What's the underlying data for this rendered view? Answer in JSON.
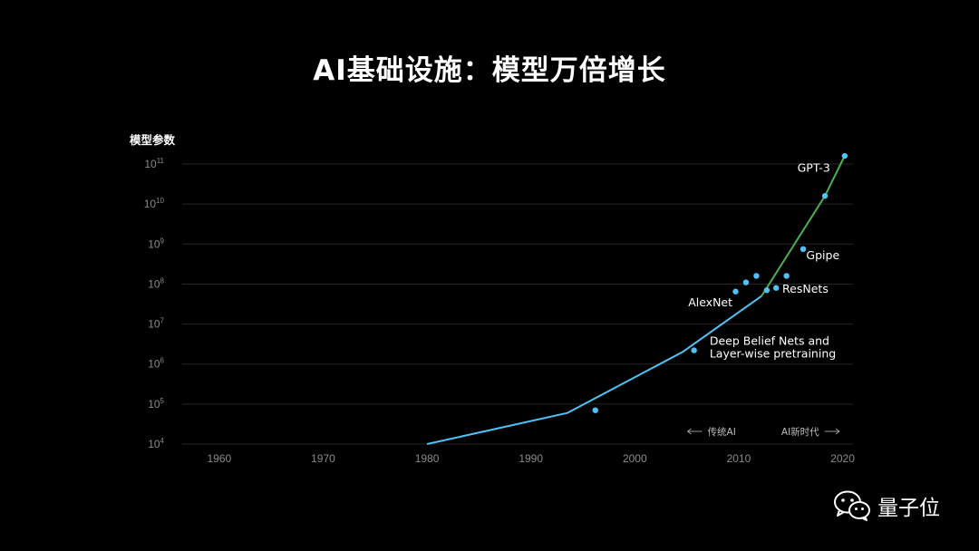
{
  "slide": {
    "title": "AI基础设施：模型万倍增长"
  },
  "watermark": {
    "text": "量子位",
    "icon": "wechat-icon"
  },
  "chart_data": {
    "type": "line",
    "ylabel": "模型参数",
    "xlabel": "",
    "y_scale": "log",
    "xlim": [
      1956,
      2021
    ],
    "ylim_exp": [
      4,
      11.25
    ],
    "x_ticks": [
      1960,
      1970,
      1980,
      1990,
      2000,
      2010,
      2020
    ],
    "y_ticks": [
      {
        "base": "10",
        "exp": "4",
        "value": 10000
      },
      {
        "base": "10",
        "exp": "5",
        "value": 100000
      },
      {
        "base": "10",
        "exp": "6",
        "value": 1000000
      },
      {
        "base": "10",
        "exp": "7",
        "value": 10000000
      },
      {
        "base": "10",
        "exp": "8",
        "value": 100000000
      },
      {
        "base": "10",
        "exp": "9",
        "value": 1000000000
      },
      {
        "base": "10",
        "exp": "10",
        "value": 10000000000
      },
      {
        "base": "10",
        "exp": "11",
        "value": 100000000000
      }
    ],
    "grid": true,
    "series": [
      {
        "color": "#4fc3f7",
        "points": [
          [
            1980,
            10000
          ],
          [
            1993.5,
            60000
          ],
          [
            2004.6,
            2000000
          ],
          [
            2012.2,
            50000000
          ]
        ]
      },
      {
        "color": "#4caf50",
        "points": [
          [
            2012.2,
            50000000
          ],
          [
            2018.3,
            16000000000
          ],
          [
            2020.2,
            160000000000
          ]
        ]
      }
    ],
    "scatter": {
      "color": "#4fc3f7",
      "points": [
        [
          1996.2,
          70000
        ],
        [
          2005.7,
          2200000
        ],
        [
          2009.7,
          65000000
        ],
        [
          2010.7,
          110000000
        ],
        [
          2011.7,
          160000000
        ],
        [
          2012.7,
          70000000
        ],
        [
          2013.6,
          80000000
        ],
        [
          2014.6,
          160000000
        ],
        [
          2016.2,
          750000000
        ],
        [
          2018.3,
          16000000000
        ],
        [
          2020.2,
          160000000000
        ]
      ]
    },
    "annotations": [
      {
        "text": "GPT-3",
        "x": 2018.8,
        "y": 65000000000,
        "anchor": "end"
      },
      {
        "text": "Gpipe",
        "x": 2016.5,
        "y": 420000000,
        "anchor": "start"
      },
      {
        "text": "ResNets",
        "x": 2014.2,
        "y": 60000000,
        "anchor": "start"
      },
      {
        "text": "AlexNet",
        "x": 2009.4,
        "y": 28000000,
        "anchor": "end"
      },
      {
        "text": "Deep Belief Nets and",
        "x": 2007.2,
        "y": 3000000,
        "anchor": "start"
      },
      {
        "text": "Layer-wise pretraining",
        "x": 2007.2,
        "y": 1450000,
        "anchor": "start"
      }
    ],
    "eras": [
      {
        "text": "传统AI",
        "arrow": "left",
        "x": 2007.0
      },
      {
        "text": "AI新时代",
        "arrow": "right",
        "x": 2014.1
      }
    ]
  }
}
